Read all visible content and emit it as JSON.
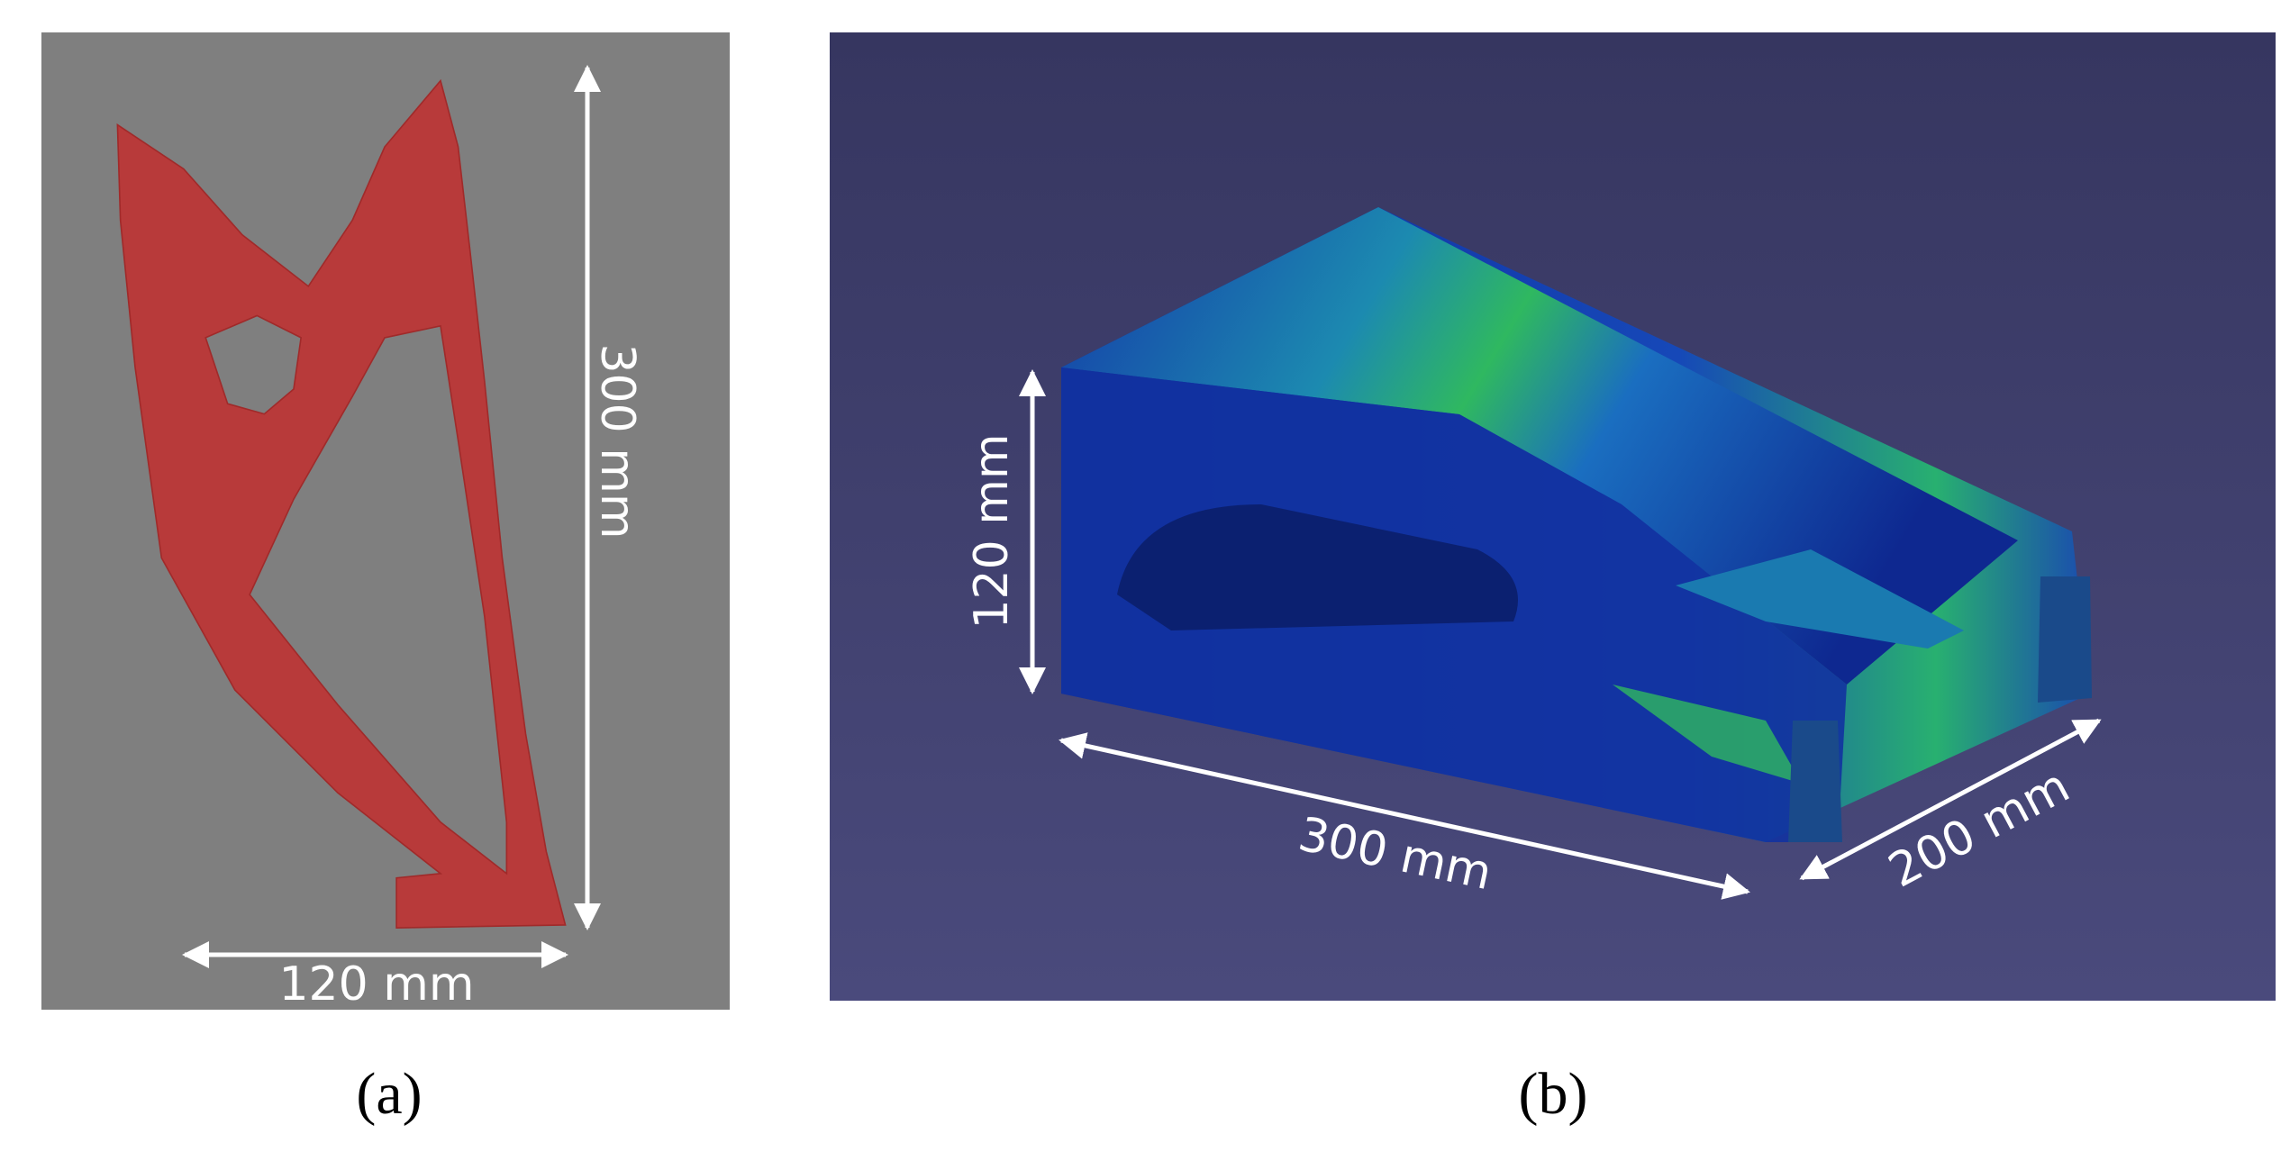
{
  "panel_a": {
    "height_label": "300 mm",
    "width_label": "120 mm",
    "caption": "(a)"
  },
  "panel_b": {
    "height_label": "120 mm",
    "length_label": "300 mm",
    "depth_label": "200 mm",
    "caption": "(b)"
  }
}
